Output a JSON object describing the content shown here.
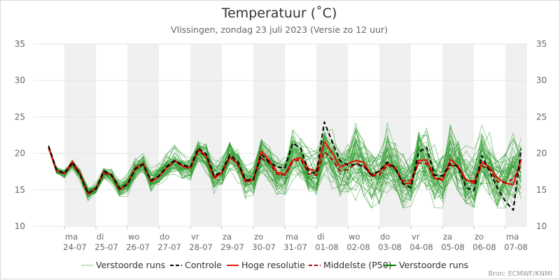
{
  "chart_data": {
    "type": "line",
    "title": "Temperatuur (˚C)",
    "subtitle": "Vlissingen, zondag 23 juli 2023 (Versie zo 12 uur)",
    "source": "Bron: ECMWF/KNMI",
    "ylim": [
      10,
      35
    ],
    "yticks": [
      "35",
      "30",
      "25",
      "20",
      "15",
      "10"
    ],
    "xlim": [
      0,
      15.2
    ],
    "days": [
      {
        "day": "ma",
        "date": "24-07"
      },
      {
        "day": "di",
        "date": "25-07"
      },
      {
        "day": "wo",
        "date": "26-07"
      },
      {
        "day": "do",
        "date": "27-07"
      },
      {
        "day": "vr",
        "date": "28-07"
      },
      {
        "day": "za",
        "date": "29-07"
      },
      {
        "day": "zo",
        "date": "30-07"
      },
      {
        "day": "ma",
        "date": "31-07"
      },
      {
        "day": "di",
        "date": "01-08"
      },
      {
        "day": "wo",
        "date": "02-08"
      },
      {
        "day": "do",
        "date": "03-08"
      },
      {
        "day": "vr",
        "date": "04-08"
      },
      {
        "day": "za",
        "date": "05-08"
      },
      {
        "day": "zo",
        "date": "06-08"
      },
      {
        "day": "ma",
        "date": "07-08"
      }
    ],
    "x": [
      0.0,
      0.25,
      0.5,
      0.75,
      1.0,
      1.25,
      1.5,
      1.75,
      2.0,
      2.25,
      2.5,
      2.75,
      3.0,
      3.25,
      3.5,
      3.75,
      4.0,
      4.25,
      4.5,
      4.75,
      5.0,
      5.25,
      5.5,
      5.75,
      6.0,
      6.25,
      6.5,
      6.75,
      7.0,
      7.25,
      7.5,
      7.75,
      8.0,
      8.25,
      8.5,
      8.75,
      9.0,
      9.25,
      9.5,
      9.75,
      10.0,
      10.25,
      10.5,
      10.75,
      11.0,
      11.25,
      11.5,
      11.75,
      12.0,
      12.25,
      12.5,
      12.75,
      13.0,
      13.25,
      13.5,
      13.75,
      14.0,
      14.25,
      14.5,
      14.75,
      15.0
    ],
    "ensemble_members": 50,
    "ensemble_spread": 1.7,
    "series": [
      {
        "name": "Controle",
        "color": "#000000",
        "style": "dashed",
        "values": [
          21.0,
          17.8,
          17.2,
          18.8,
          17.0,
          14.5,
          15.1,
          17.6,
          17.0,
          15.2,
          15.7,
          17.9,
          18.5,
          16.3,
          16.9,
          18.2,
          19.0,
          18.4,
          18.1,
          20.7,
          19.9,
          16.9,
          17.5,
          19.8,
          18.9,
          16.3,
          16.4,
          19.9,
          18.8,
          18.1,
          18.0,
          21.4,
          20.7,
          17.5,
          17.2,
          24.3,
          21.6,
          19.0,
          18.4,
          18.5,
          18.2,
          17.1,
          17.6,
          18.8,
          18.0,
          15.8,
          15.3,
          20.2,
          20.8,
          17.0,
          16.9,
          18.6,
          18.2,
          15.3,
          14.9,
          19.7,
          17.5,
          15.2,
          13.4,
          12.2,
          20.6
        ]
      },
      {
        "name": "Hoge resolutie",
        "color": "#e3150b",
        "style": "solid",
        "values": [
          20.9,
          17.6,
          17.2,
          18.9,
          17.2,
          14.4,
          15.2,
          17.5,
          17.0,
          15.0,
          15.8,
          18.0,
          18.6,
          16.1,
          16.8,
          18.0,
          19.0,
          18.2,
          18.0,
          20.5,
          19.7,
          16.6,
          17.3,
          19.5,
          18.6,
          16.1,
          16.3,
          20.3,
          19.1,
          17.4,
          17.1,
          19.1,
          19.4,
          17.9,
          17.5,
          21.6,
          20.1,
          18.1,
          18.6,
          19.0,
          18.8,
          16.9,
          17.5,
          18.6,
          18.1,
          15.8,
          15.9,
          19.0,
          19.1,
          16.6,
          16.3,
          19.2,
          18.2,
          16.4,
          15.9,
          18.8,
          18.1,
          16.6,
          15.9,
          15.7,
          19.2
        ]
      },
      {
        "name": "Middelste (P50)",
        "color": "#b20000",
        "style": "dashed",
        "values": [
          20.8,
          17.6,
          17.2,
          18.5,
          17.1,
          14.6,
          15.2,
          17.3,
          16.9,
          15.1,
          15.8,
          17.8,
          18.5,
          16.2,
          16.9,
          18.1,
          18.9,
          18.3,
          18.0,
          20.3,
          19.6,
          16.8,
          17.3,
          19.4,
          18.6,
          16.3,
          16.5,
          19.3,
          18.7,
          17.1,
          17.0,
          18.8,
          19.2,
          17.2,
          17.0,
          20.2,
          19.2,
          17.6,
          17.8,
          18.6,
          18.3,
          16.9,
          17.0,
          18.4,
          17.9,
          16.2,
          16.3,
          18.7,
          18.6,
          16.6,
          16.5,
          18.4,
          18.0,
          16.3,
          16.2,
          18.3,
          17.8,
          16.1,
          16.0,
          16.5,
          18.2
        ]
      },
      {
        "name": "Verstoorde runs",
        "color": "#1e8c1e",
        "style": "thin"
      },
      {
        "name": "Verstoorde runs",
        "color": "#008000",
        "style": "solid"
      }
    ]
  },
  "legend": {
    "items": [
      {
        "label": "Verstoorde runs",
        "color": "#86c986",
        "style": "thin"
      },
      {
        "label": "Controle",
        "color": "#000000",
        "style": "dashed"
      },
      {
        "label": "Hoge resolutie",
        "color": "#e3150b",
        "style": "solid"
      },
      {
        "label": "Middelste (P50)",
        "color": "#b20000",
        "style": "dashed"
      },
      {
        "label": "Verstoorde runs",
        "color": "#008000",
        "style": "solid"
      }
    ]
  },
  "colors": {
    "weekend_band": "#f0f0f0",
    "grid": "#e6e6e6",
    "ensemble": "#2e9b2e"
  }
}
